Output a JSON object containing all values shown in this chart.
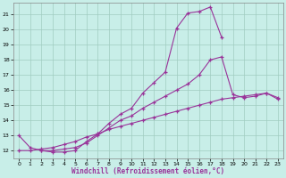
{
  "xlabel": "Windchill (Refroidissement éolien,°C)",
  "background_color": "#c8eee8",
  "grid_color": "#a0ccc0",
  "line_color": "#993399",
  "xlim": [
    -0.5,
    23.5
  ],
  "ylim": [
    11.5,
    21.8
  ],
  "xticks": [
    0,
    1,
    2,
    3,
    4,
    5,
    6,
    7,
    8,
    9,
    10,
    11,
    12,
    13,
    14,
    15,
    16,
    17,
    18,
    19,
    20,
    21,
    22,
    23
  ],
  "yticks": [
    12,
    13,
    14,
    15,
    16,
    17,
    18,
    19,
    20,
    21
  ],
  "series1_x": [
    0,
    1,
    2,
    3,
    4,
    5,
    6,
    7,
    8,
    9,
    10,
    11,
    12,
    13,
    14,
    15,
    16,
    17,
    18
  ],
  "series1_y": [
    13.0,
    12.2,
    12.0,
    11.9,
    11.9,
    12.0,
    12.6,
    13.1,
    13.8,
    14.4,
    14.8,
    15.8,
    16.5,
    17.2,
    20.1,
    21.1,
    21.2,
    21.5,
    19.5
  ],
  "series2_x": [
    2,
    3,
    4,
    5,
    6,
    7,
    8,
    9,
    10,
    11,
    12,
    13,
    14,
    15,
    16,
    17,
    18,
    19,
    20,
    21,
    22,
    23
  ],
  "series2_y": [
    12.0,
    12.0,
    12.1,
    12.2,
    12.5,
    13.0,
    13.5,
    14.0,
    14.3,
    14.8,
    15.2,
    15.6,
    16.0,
    16.4,
    17.0,
    18.0,
    18.2,
    15.7,
    15.5,
    15.6,
    15.8,
    15.4
  ],
  "series3_x": [
    0,
    1,
    2,
    3,
    4,
    5,
    6,
    7,
    8,
    9,
    10,
    11,
    12,
    13,
    14,
    15,
    16,
    17,
    18,
    19,
    20,
    21,
    22,
    23
  ],
  "series3_y": [
    12.0,
    12.0,
    12.1,
    12.2,
    12.4,
    12.6,
    12.9,
    13.1,
    13.4,
    13.6,
    13.8,
    14.0,
    14.2,
    14.4,
    14.6,
    14.8,
    15.0,
    15.2,
    15.4,
    15.5,
    15.6,
    15.7,
    15.8,
    15.5
  ]
}
